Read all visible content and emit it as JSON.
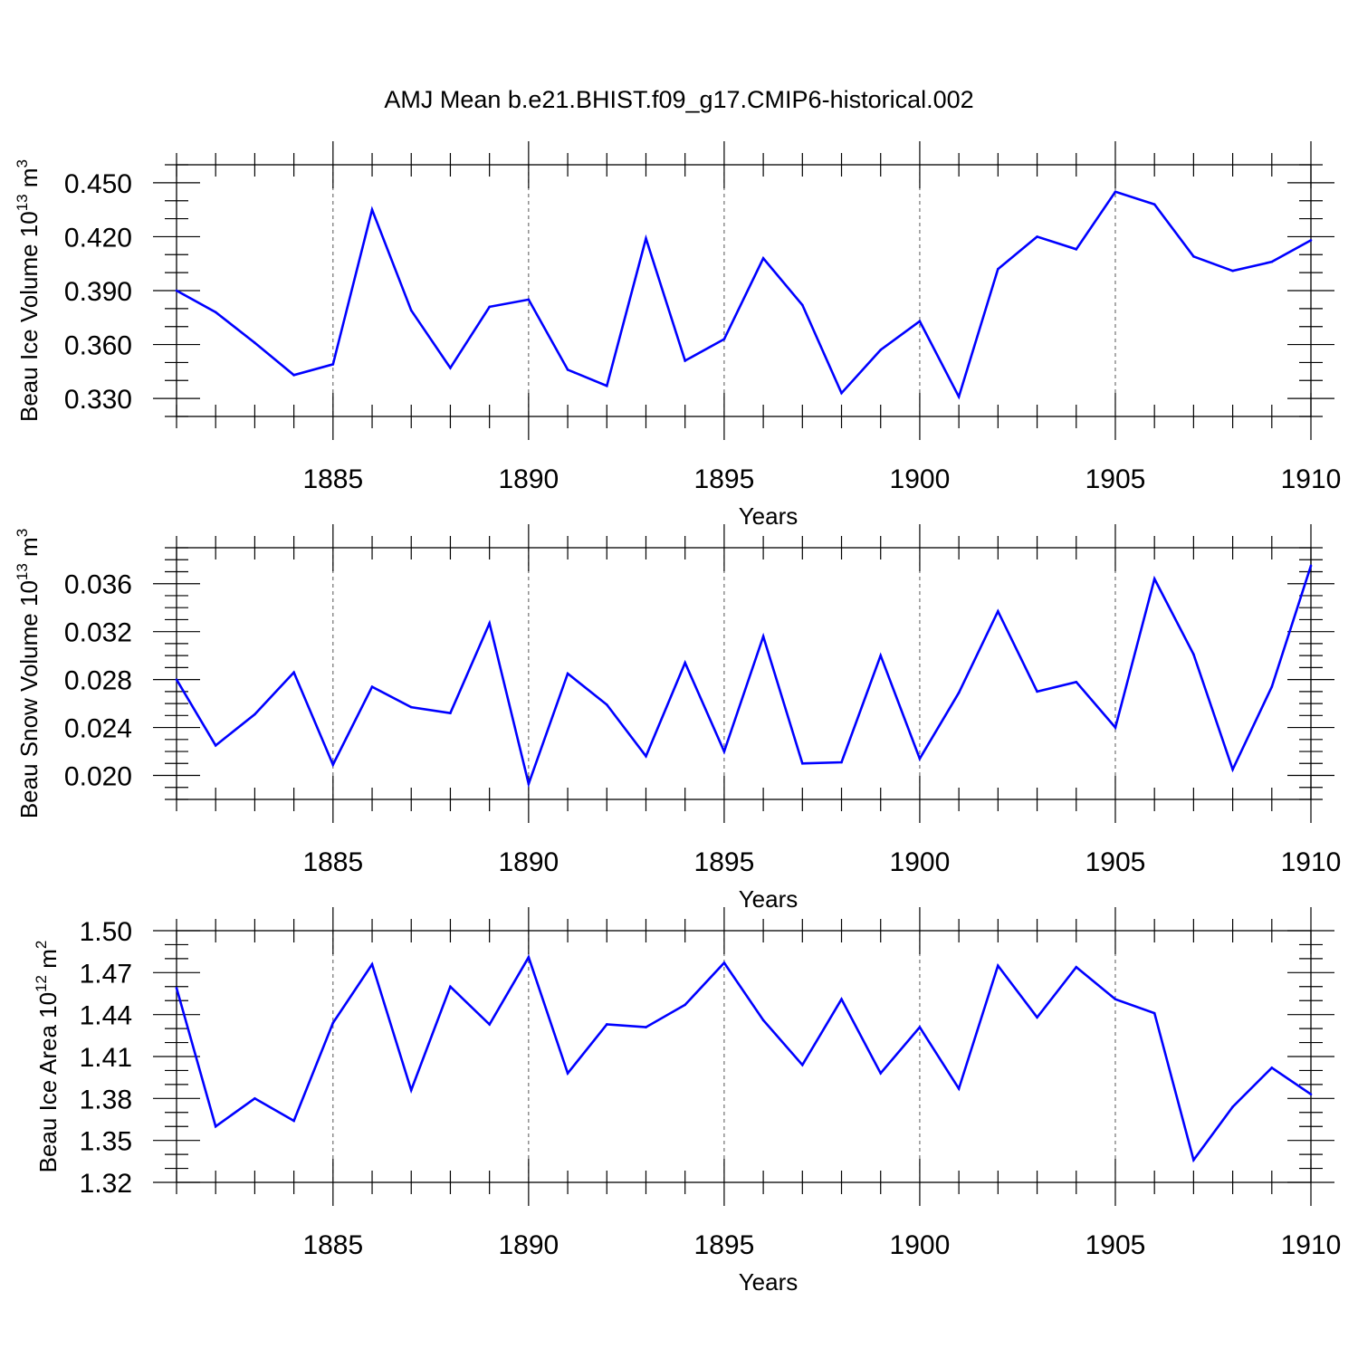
{
  "figure": {
    "title": "AMJ Mean b.e21.BHIST.f09_g17.CMIP6-historical.002"
  },
  "style": {
    "line_color": "#0000ff",
    "axis_color": "#000000",
    "grid_color": "#555555"
  },
  "chart_data": [
    {
      "type": "line",
      "title": "",
      "xlabel": "Years",
      "ylabel_main": "Beau Ice Volume 10",
      "ylabel_exp": "13",
      "ylabel_unit": " m",
      "ylabel_unit_exp": "3",
      "xlim": [
        1881,
        1910
      ],
      "ylim": [
        0.32,
        0.46
      ],
      "x_ticks": [
        1885,
        1890,
        1895,
        1900,
        1905,
        1910
      ],
      "x_tick_labels": [
        "1885",
        "1890",
        "1895",
        "1900",
        "1905",
        "1910"
      ],
      "y_ticks": [
        0.33,
        0.36,
        0.39,
        0.42,
        0.45
      ],
      "y_tick_labels": [
        "0.330",
        "0.360",
        "0.390",
        "0.420",
        "0.450"
      ],
      "y_minor_step": 0.01,
      "vgrid": [
        1885,
        1890,
        1895,
        1900,
        1905
      ],
      "x": [
        1881,
        1882,
        1883,
        1884,
        1885,
        1886,
        1887,
        1888,
        1889,
        1890,
        1891,
        1892,
        1893,
        1894,
        1895,
        1896,
        1897,
        1898,
        1899,
        1900,
        1901,
        1902,
        1903,
        1904,
        1905,
        1906,
        1907,
        1908,
        1909,
        1910
      ],
      "values": [
        0.39,
        0.378,
        0.361,
        0.343,
        0.349,
        0.435,
        0.379,
        0.347,
        0.381,
        0.385,
        0.346,
        0.337,
        0.419,
        0.351,
        0.363,
        0.408,
        0.382,
        0.333,
        0.357,
        0.373,
        0.331,
        0.402,
        0.42,
        0.413,
        0.445,
        0.438,
        0.409,
        0.401,
        0.406,
        0.418
      ]
    },
    {
      "type": "line",
      "title": "",
      "xlabel": "Years",
      "ylabel_main": "Beau Snow Volume 10",
      "ylabel_exp": "13",
      "ylabel_unit": " m",
      "ylabel_unit_exp": "3",
      "xlim": [
        1881,
        1910
      ],
      "ylim": [
        0.018,
        0.039
      ],
      "x_ticks": [
        1885,
        1890,
        1895,
        1900,
        1905,
        1910
      ],
      "x_tick_labels": [
        "1885",
        "1890",
        "1895",
        "1900",
        "1905",
        "1910"
      ],
      "y_ticks": [
        0.02,
        0.024,
        0.028,
        0.032,
        0.036
      ],
      "y_tick_labels": [
        "0.020",
        "0.024",
        "0.028",
        "0.032",
        "0.036"
      ],
      "y_minor_step": 0.001,
      "vgrid": [
        1885,
        1890,
        1895,
        1900,
        1905
      ],
      "x": [
        1881,
        1882,
        1883,
        1884,
        1885,
        1886,
        1887,
        1888,
        1889,
        1890,
        1891,
        1892,
        1893,
        1894,
        1895,
        1896,
        1897,
        1898,
        1899,
        1900,
        1901,
        1902,
        1903,
        1904,
        1905,
        1906,
        1907,
        1908,
        1909,
        1910
      ],
      "values": [
        0.028,
        0.0225,
        0.0251,
        0.0286,
        0.0209,
        0.0274,
        0.0257,
        0.0252,
        0.0327,
        0.0193,
        0.0285,
        0.0259,
        0.0216,
        0.0294,
        0.022,
        0.0316,
        0.021,
        0.0211,
        0.03,
        0.0214,
        0.0269,
        0.0337,
        0.027,
        0.0278,
        0.024,
        0.0364,
        0.0301,
        0.0205,
        0.0274,
        0.0375
      ]
    },
    {
      "type": "line",
      "title": "",
      "xlabel": "Years",
      "ylabel_main": "Beau Ice Area 10",
      "ylabel_exp": "12",
      "ylabel_unit": " m",
      "ylabel_unit_exp": "2",
      "xlim": [
        1881,
        1910
      ],
      "ylim": [
        1.32,
        1.5
      ],
      "x_ticks": [
        1885,
        1890,
        1895,
        1900,
        1905,
        1910
      ],
      "x_tick_labels": [
        "1885",
        "1890",
        "1895",
        "1900",
        "1905",
        "1910"
      ],
      "y_ticks": [
        1.32,
        1.35,
        1.38,
        1.41,
        1.44,
        1.47,
        1.5
      ],
      "y_tick_labels": [
        "1.32",
        "1.35",
        "1.38",
        "1.41",
        "1.44",
        "1.47",
        "1.50"
      ],
      "y_minor_step": 0.01,
      "vgrid": [
        1885,
        1890,
        1895,
        1900,
        1905
      ],
      "x": [
        1881,
        1882,
        1883,
        1884,
        1885,
        1886,
        1887,
        1888,
        1889,
        1890,
        1891,
        1892,
        1893,
        1894,
        1895,
        1896,
        1897,
        1898,
        1899,
        1900,
        1901,
        1902,
        1903,
        1904,
        1905,
        1906,
        1907,
        1908,
        1909,
        1910
      ],
      "values": [
        1.459,
        1.36,
        1.38,
        1.364,
        1.434,
        1.476,
        1.386,
        1.46,
        1.433,
        1.481,
        1.398,
        1.433,
        1.431,
        1.447,
        1.477,
        1.436,
        1.404,
        1.451,
        1.398,
        1.431,
        1.387,
        1.475,
        1.438,
        1.474,
        1.451,
        1.441,
        1.336,
        1.374,
        1.402,
        1.383
      ]
    }
  ]
}
